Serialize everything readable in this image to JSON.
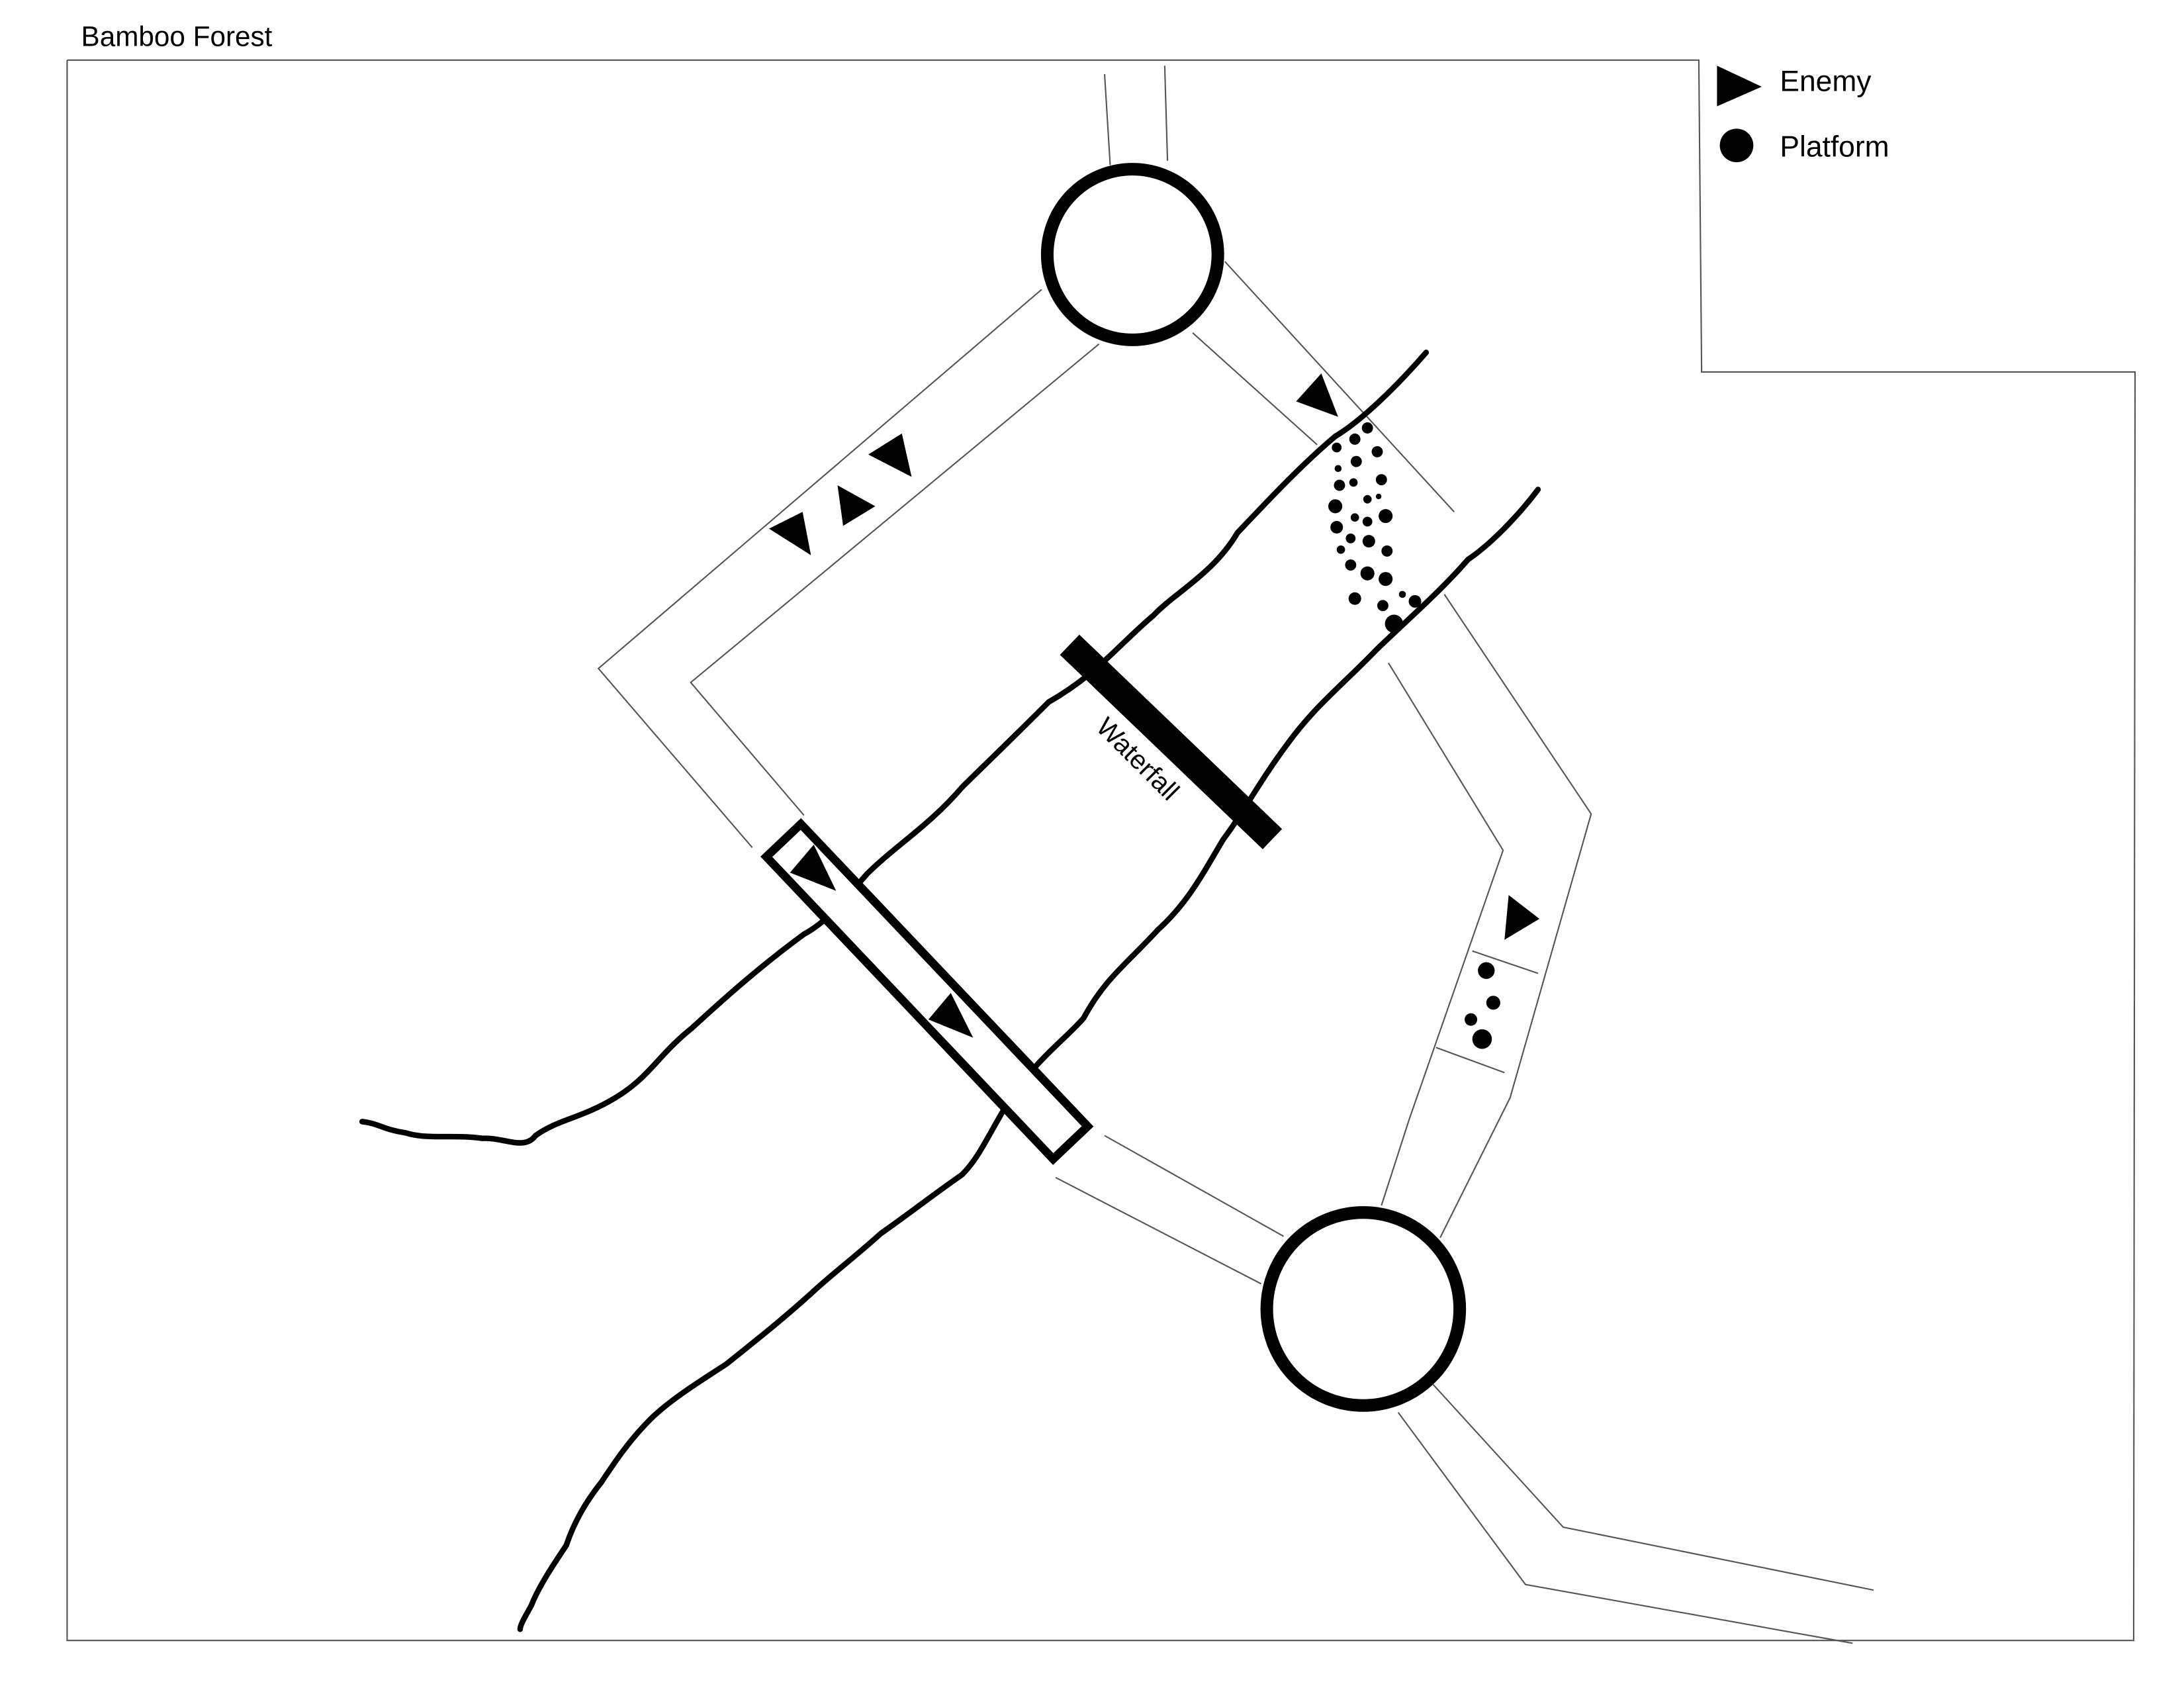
{
  "map": {
    "title": "Bamboo Forest",
    "landmark_label": "Waterfall"
  },
  "legend": {
    "items": [
      {
        "symbol": "triangle",
        "label": "Enemy"
      },
      {
        "symbol": "circle",
        "label": "Platform"
      }
    ]
  },
  "colors": {
    "ink": "#000000",
    "background": "#ffffff"
  }
}
